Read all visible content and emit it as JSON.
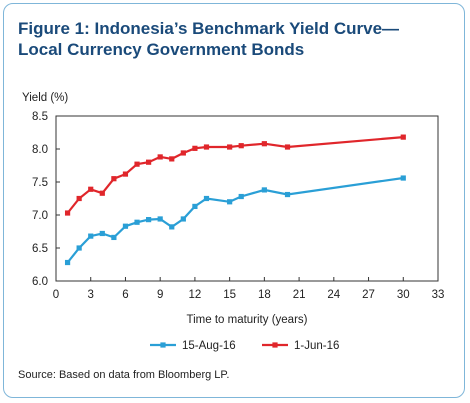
{
  "figure": {
    "title_line1": "Figure 1: Indonesia’s Benchmark Yield Curve—",
    "title_line2": "Local Currency Government Bonds",
    "source": "Source: Based on data from Bloomberg LP."
  },
  "chart_data": {
    "type": "line",
    "ylabel": "Yield (%)",
    "xlabel": "Time to maturity (years)",
    "xlim": [
      0,
      33
    ],
    "ylim": [
      6.0,
      8.5
    ],
    "xticks": [
      0,
      3,
      6,
      9,
      12,
      15,
      18,
      21,
      24,
      27,
      30,
      33
    ],
    "yticks": [
      6.0,
      6.5,
      7.0,
      7.5,
      8.0,
      8.5
    ],
    "legend_position": "bottom-center",
    "grid": false,
    "series": [
      {
        "name": "15-Aug-16",
        "color": "#2a9fd6",
        "x": [
          1,
          2,
          3,
          4,
          5,
          6,
          7,
          8,
          9,
          10,
          11,
          12,
          13,
          15,
          16,
          18,
          20,
          30
        ],
        "y": [
          6.28,
          6.5,
          6.68,
          6.72,
          6.66,
          6.83,
          6.89,
          6.93,
          6.94,
          6.82,
          6.94,
          7.13,
          7.25,
          7.2,
          7.28,
          7.38,
          7.31,
          7.56
        ]
      },
      {
        "name": "1-Jun-16",
        "color": "#e0262b",
        "x": [
          1,
          2,
          3,
          4,
          5,
          6,
          7,
          8,
          9,
          10,
          11,
          12,
          13,
          15,
          16,
          18,
          20,
          30
        ],
        "y": [
          7.03,
          7.25,
          7.39,
          7.33,
          7.55,
          7.62,
          7.77,
          7.8,
          7.88,
          7.85,
          7.94,
          8.01,
          8.03,
          8.03,
          8.05,
          8.08,
          8.03,
          8.18
        ]
      }
    ]
  }
}
